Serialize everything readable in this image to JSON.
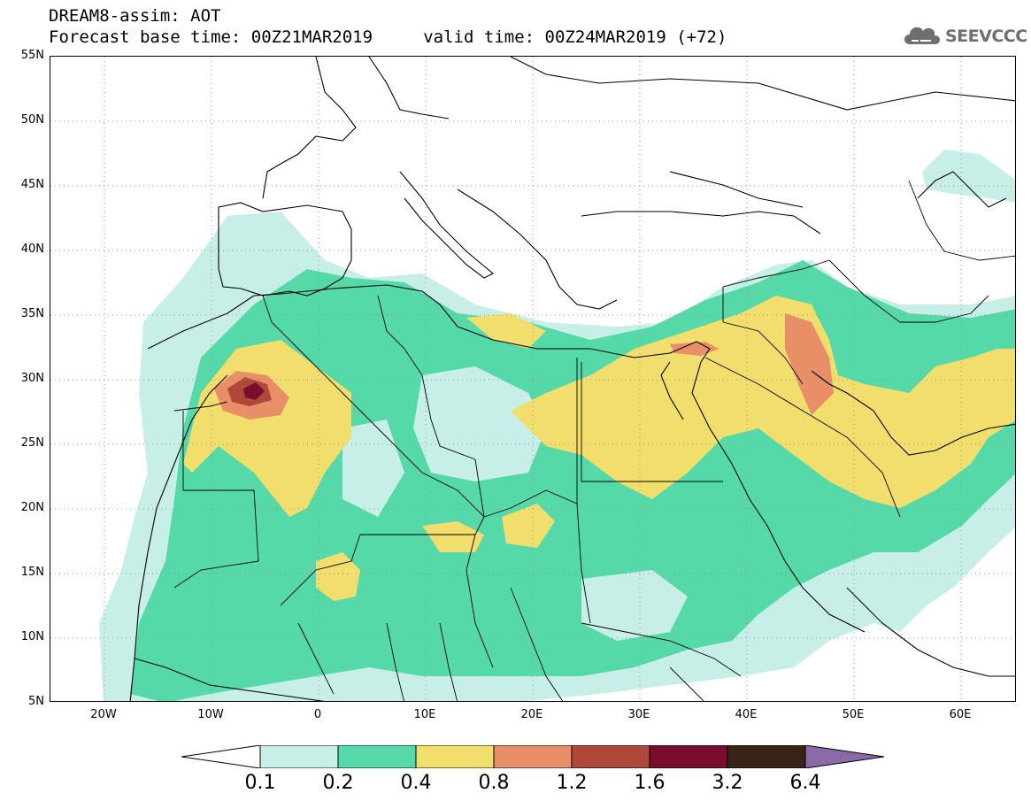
{
  "header": {
    "title_line1": "DREAM8-assim: AOT",
    "title_line2": "Forecast base time: 00Z21MAR2019     valid time: 00Z24MAR2019 (+72)",
    "logo_text": "SEEVCCC"
  },
  "axes": {
    "lat_labels": [
      "55N",
      "50N",
      "45N",
      "40N",
      "35N",
      "30N",
      "25N",
      "20N",
      "15N",
      "10N",
      "5N"
    ],
    "lon_labels": [
      "20W",
      "10W",
      "0",
      "10E",
      "20E",
      "30E",
      "40E",
      "50E",
      "60E"
    ]
  },
  "legend": {
    "labels": [
      "0.1",
      "0.2",
      "0.4",
      "0.8",
      "1.2",
      "1.6",
      "3.2",
      "6.4"
    ],
    "colors": [
      "#ffffff",
      "#c7efe8",
      "#56d9a8",
      "#f2de6c",
      "#e88f68",
      "#b0473b",
      "#7a0c2e",
      "#3a2418",
      "#8a6aa8"
    ]
  },
  "colors": {
    "aot_0_1_0_2": "#c7efe8",
    "aot_0_2_0_4": "#56d9a8",
    "aot_0_4_0_8": "#f2de6c",
    "aot_0_8_1_2": "#e88f68",
    "aot_1_2_1_6": "#b0473b",
    "aot_1_6_3_2": "#7a0c2e"
  }
}
